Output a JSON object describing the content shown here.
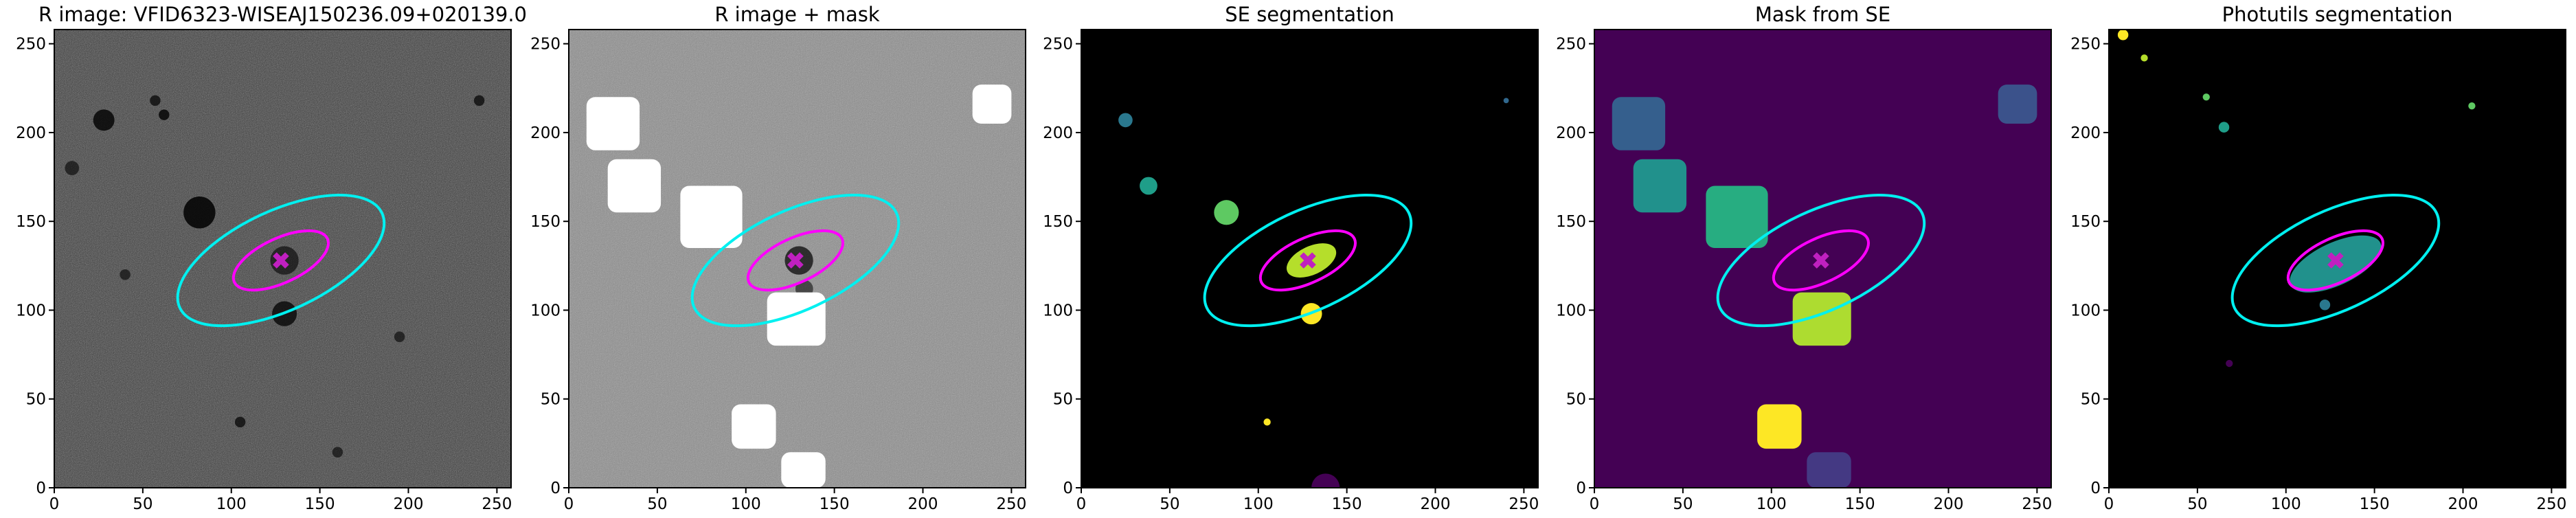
{
  "chart_data": [
    {
      "type": "image",
      "title": "R image: VFID6323-WISEAJ150236.09+020139.0",
      "xlim": [
        0,
        258
      ],
      "ylim": [
        0,
        258
      ],
      "xticks": [
        0,
        50,
        100,
        150,
        200,
        250
      ],
      "yticks": [
        0,
        50,
        100,
        150,
        200,
        250
      ]
    },
    {
      "type": "image",
      "title": "R image + mask",
      "xlim": [
        0,
        258
      ],
      "ylim": [
        0,
        258
      ],
      "xticks": [
        0,
        50,
        100,
        150,
        200,
        250
      ],
      "yticks": [
        0,
        50,
        100,
        150,
        200,
        250
      ]
    },
    {
      "type": "image",
      "title": "SE segmentation",
      "xlim": [
        0,
        258
      ],
      "ylim": [
        0,
        258
      ],
      "xticks": [
        0,
        50,
        100,
        150,
        200,
        250
      ],
      "yticks": [
        0,
        50,
        100,
        150,
        200,
        250
      ]
    },
    {
      "type": "image",
      "title": "Mask from SE",
      "xlim": [
        0,
        258
      ],
      "ylim": [
        0,
        258
      ],
      "xticks": [
        0,
        50,
        100,
        150,
        200,
        250
      ],
      "yticks": [
        0,
        50,
        100,
        150,
        200,
        250
      ]
    },
    {
      "type": "image",
      "title": "Photutils segmentation",
      "xlim": [
        0,
        258
      ],
      "ylim": [
        0,
        258
      ],
      "xticks": [
        0,
        50,
        100,
        150,
        200,
        250
      ],
      "yticks": [
        0,
        50,
        100,
        150,
        200,
        250
      ]
    }
  ]
}
